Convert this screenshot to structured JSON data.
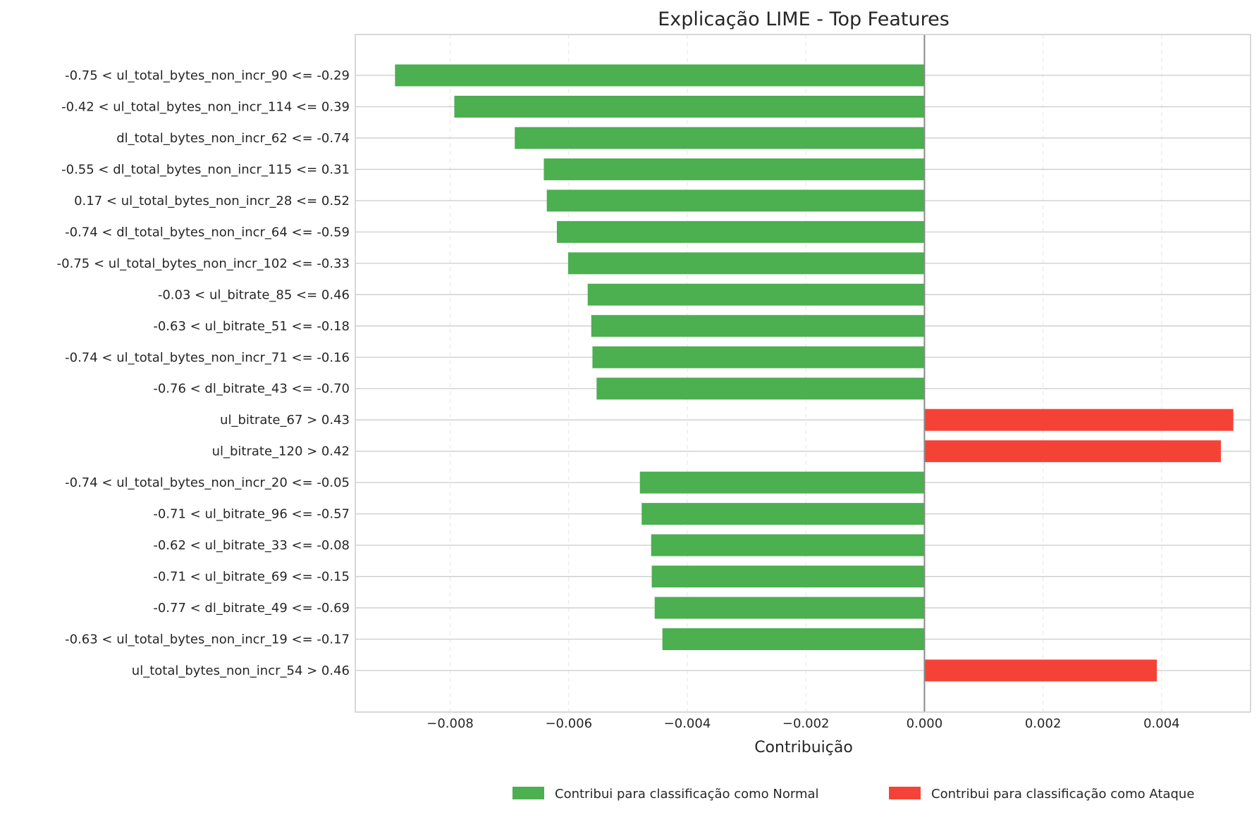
{
  "chart_data": {
    "type": "bar",
    "orientation": "horizontal",
    "title": "Explicação LIME - Top Features",
    "xlabel": "Contribuição",
    "ylabel": "",
    "xlim": [
      -0.0096,
      0.0055
    ],
    "xticks": [
      -0.008,
      -0.006,
      -0.004,
      -0.002,
      0.0,
      0.002,
      0.004
    ],
    "xtick_labels": [
      "−0.008",
      "−0.006",
      "−0.004",
      "−0.002",
      "0.000",
      "0.002",
      "0.004"
    ],
    "grid": "x-dashed",
    "legend_position": "bottom-right",
    "colors": {
      "normal": "#4caf50",
      "attack": "#f44336"
    },
    "legend": [
      {
        "label": "Contribui para classificação como Normal",
        "color": "#4caf50"
      },
      {
        "label": "Contribui para classificação como Ataque",
        "color": "#f44336"
      }
    ],
    "categories": [
      "-0.75 < ul_total_bytes_non_incr_90 <= -0.29",
      "-0.42 < ul_total_bytes_non_incr_114 <= 0.39",
      "dl_total_bytes_non_incr_62 <= -0.74",
      "-0.55 < dl_total_bytes_non_incr_115 <= 0.31",
      "0.17 < ul_total_bytes_non_incr_28 <= 0.52",
      "-0.74 < dl_total_bytes_non_incr_64 <= -0.59",
      "-0.75 < ul_total_bytes_non_incr_102 <= -0.33",
      "-0.03 < ul_bitrate_85 <= 0.46",
      "-0.63 < ul_bitrate_51 <= -0.18",
      "-0.74 < ul_total_bytes_non_incr_71 <= -0.16",
      "-0.76 < dl_bitrate_43 <= -0.70",
      "ul_bitrate_67 > 0.43",
      "ul_bitrate_120 > 0.42",
      "-0.74 < ul_total_bytes_non_incr_20 <= -0.05",
      "-0.71 < ul_bitrate_96 <= -0.57",
      "-0.62 < ul_bitrate_33 <= -0.08",
      "-0.71 < ul_bitrate_69 <= -0.15",
      "-0.77 < dl_bitrate_49 <= -0.69",
      "-0.63 < ul_total_bytes_non_incr_19 <= -0.17",
      "ul_total_bytes_non_incr_54 > 0.46"
    ],
    "values": [
      -0.00893,
      -0.00793,
      -0.00691,
      -0.00642,
      -0.00637,
      -0.0062,
      -0.00601,
      -0.00568,
      -0.00562,
      -0.0056,
      -0.00553,
      0.00521,
      0.005,
      -0.0048,
      -0.00477,
      -0.00461,
      -0.0046,
      -0.00455,
      -0.00442,
      0.00392
    ]
  }
}
